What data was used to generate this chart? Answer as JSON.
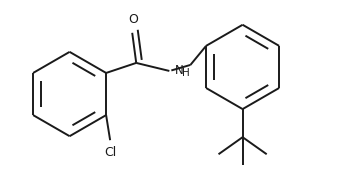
{
  "background_color": "#ffffff",
  "line_color": "#1a1a1a",
  "line_width": 1.4,
  "font_size": 8.5,
  "figsize": [
    3.54,
    1.72
  ],
  "dpi": 100,
  "xlim": [
    0.2,
    3.7
  ],
  "ylim": [
    0.05,
    1.75
  ]
}
